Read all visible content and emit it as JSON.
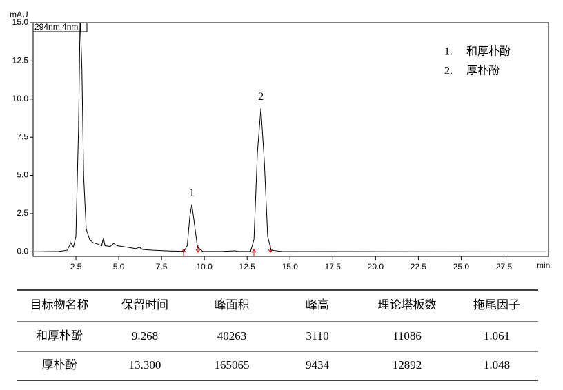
{
  "chart_data": {
    "type": "line",
    "y_label": "mAU",
    "x_unit": "min",
    "channel": "294nm,4nm",
    "xlim": [
      0,
      30.1
    ],
    "ylim": [
      -0.3,
      15.0
    ],
    "xticks": [
      2.5,
      {
        "value": 5,
        "label": "5.0"
      },
      7.5,
      {
        "value": 10,
        "label": "10.0"
      },
      12.5,
      {
        "value": 15,
        "label": "15.0"
      },
      17.5,
      {
        "value": 20,
        "label": "20.0"
      },
      22.5,
      {
        "value": 25,
        "label": "25.0"
      },
      27.5
    ],
    "yticks": [
      {
        "value": 0,
        "label": "0.0"
      },
      2.5,
      {
        "value": 5,
        "label": "5.0"
      },
      7.5,
      {
        "value": 10,
        "label": "10.0"
      },
      12.5,
      {
        "value": 15,
        "label": "15.0"
      }
    ],
    "color": "#000000",
    "x": [
      0,
      1.5,
      2.0,
      2.2,
      2.35,
      2.5,
      2.65,
      2.75,
      2.85,
      2.95,
      3.1,
      3.3,
      3.5,
      3.8,
      4.0,
      4.1,
      4.2,
      4.5,
      4.7,
      4.9,
      5.5,
      6.0,
      6.2,
      6.4,
      7.0,
      8.0,
      8.8,
      9.0,
      9.15,
      9.268,
      9.4,
      9.6,
      9.9,
      11.0,
      11.8,
      12.0,
      12.7,
      12.9,
      13.1,
      13.3,
      13.5,
      13.7,
      13.9,
      14.5,
      20,
      30.1
    ],
    "values": [
      0,
      0.02,
      0.1,
      0.6,
      0.3,
      1.0,
      8,
      15.5,
      12,
      5,
      1.5,
      0.8,
      0.6,
      0.5,
      0.4,
      0.9,
      0.4,
      0.35,
      0.55,
      0.4,
      0.3,
      0.2,
      0.3,
      0.15,
      0.1,
      0.05,
      0.03,
      0.4,
      2.3,
      3.1,
      2.0,
      0.3,
      0.03,
      0.02,
      0.06,
      0.02,
      0.03,
      0.8,
      6.5,
      9.4,
      6.0,
      1.0,
      0.1,
      0.02,
      0.01,
      0
    ],
    "peak_labels": [
      {
        "text": "1",
        "x": 9.268,
        "y": 3.1
      },
      {
        "text": "2",
        "x": 13.3,
        "y": 9.4
      }
    ],
    "legend": [
      "1.",
      "和厚朴酚",
      "2.",
      "厚朴酚"
    ]
  },
  "table": {
    "header": [
      "目标物名称",
      "保留时间",
      "峰面积",
      "峰高",
      "理论塔板数",
      "拖尾因子"
    ],
    "rows": [
      [
        "和厚朴酚",
        "9.268",
        "40263",
        "3110",
        "11086",
        "1.061"
      ],
      [
        "厚朴酚",
        "13.300",
        "165065",
        "9434",
        "12892",
        "1.048"
      ]
    ]
  }
}
